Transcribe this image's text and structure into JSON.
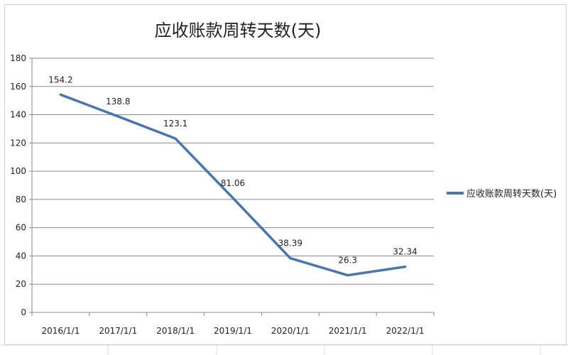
{
  "colors": {
    "series": "#4a76ad",
    "grid": "#8a8a8a",
    "sheet_grid": "#dcdcdc"
  },
  "chart_data": {
    "type": "line",
    "title": "应收账款周转天数(天)",
    "xlabel": "",
    "ylabel": "",
    "categories": [
      "2016/1/1",
      "2017/1/1",
      "2018/1/1",
      "2019/1/1",
      "2020/1/1",
      "2021/1/1",
      "2022/1/1"
    ],
    "series": [
      {
        "name": "应收账款周转天数(天)",
        "values": [
          154.2,
          138.8,
          123.1,
          81.06,
          38.39,
          26.3,
          32.34
        ],
        "labels": [
          "154.2",
          "138.8",
          "123.1",
          "81.06",
          "38.39",
          "26.3",
          "32.34"
        ]
      }
    ],
    "ylim": [
      0,
      180
    ],
    "yticks": [
      0,
      20,
      40,
      60,
      80,
      100,
      120,
      140,
      160,
      180
    ],
    "grid": true,
    "legend_position": "right"
  }
}
